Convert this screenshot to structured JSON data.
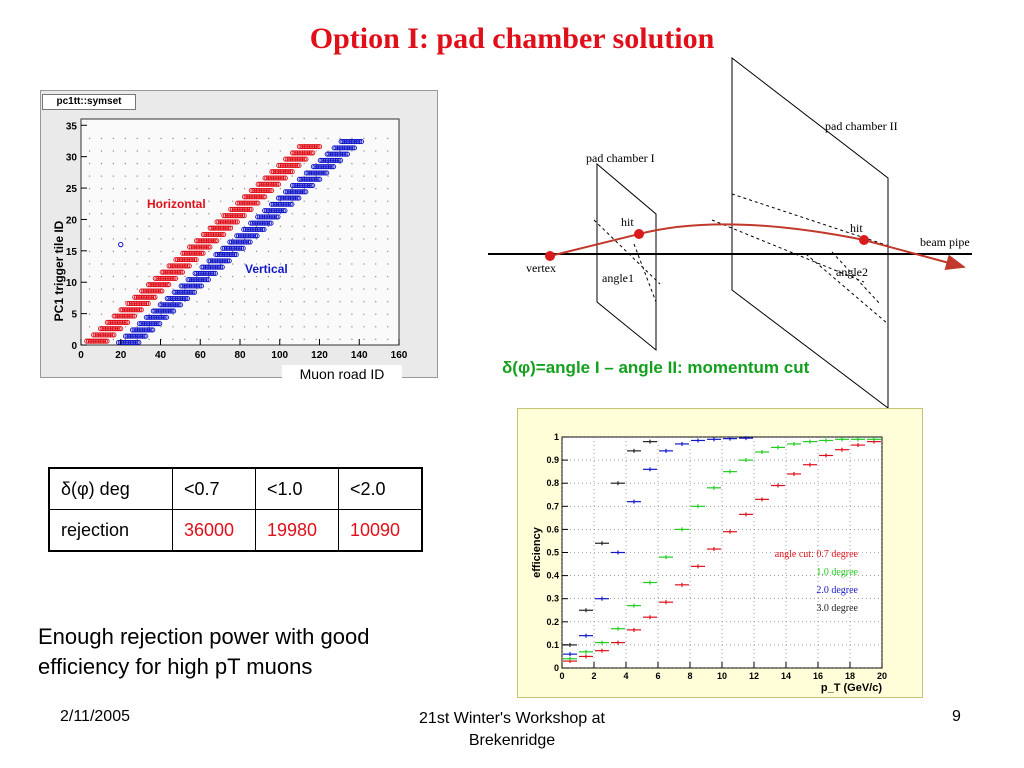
{
  "slide": {
    "title": "Option I:  pad chamber solution",
    "page_number": "9",
    "footer_date": "2/11/2005",
    "footer_event_line1": "21st Winter's Workshop at",
    "footer_event_line2": "Brekenridge"
  },
  "scatter_plot": {
    "tab_title": "pc1tt::symset",
    "ylabel": "PC1 trigger tile ID",
    "xlabel": "Muon road ID",
    "x_ticks": [
      "0",
      "20",
      "40",
      "60",
      "80",
      "100",
      "120",
      "140",
      "160"
    ],
    "y_ticks": [
      "0",
      "5",
      "10",
      "15",
      "20",
      "25",
      "30",
      "35"
    ],
    "series_labels": {
      "horizontal": "Horizontal",
      "vertical": "Vertical"
    },
    "colors": {
      "horizontal": "#e0101a",
      "vertical": "#1418c8"
    }
  },
  "diagram": {
    "pad_chamber_1": "pad chamber I",
    "pad_chamber_2": "pad chamber II",
    "hit_1": "hit",
    "hit_2": "hit",
    "vertex": "vertex",
    "beam_pipe": "beam pipe",
    "angle_1": "angle1",
    "angle_2": "angle2",
    "momentum_cut": "δ(φ)=angle I – angle II: momentum cut"
  },
  "rejection_table": {
    "headers": [
      "δ(φ) deg",
      "<0.7",
      "<1.0",
      "<2.0"
    ],
    "row_label": "rejection",
    "values": [
      "36000",
      "19980",
      "10090"
    ]
  },
  "conclusion_text": "Enough rejection power with good efficiency for high pT muons",
  "chart_data": {
    "type": "scatter",
    "title": "",
    "xlabel": "p_T (GeV/c)",
    "ylabel": "efficiency",
    "xlim": [
      0,
      20
    ],
    "ylim": [
      0,
      1
    ],
    "x_ticks": [
      "0",
      "2",
      "4",
      "6",
      "8",
      "10",
      "12",
      "14",
      "16",
      "18",
      "20"
    ],
    "y_ticks": [
      "0",
      "0.1",
      "0.2",
      "0.3",
      "0.4",
      "0.5",
      "0.6",
      "0.7",
      "0.8",
      "0.9",
      "1"
    ],
    "grid": true,
    "legend_position": "right-middle",
    "series": [
      {
        "name": "angle cut: 0.7 degree",
        "color": "#e0101a",
        "x": [
          0.5,
          1.5,
          2.5,
          3.5,
          4.5,
          5.5,
          6.5,
          7.5,
          8.5,
          9.5,
          10.5,
          11.5,
          12.5,
          13.5,
          14.5,
          15.5,
          16.5,
          17.5,
          18.5,
          19.5
        ],
        "y": [
          0.03,
          0.05,
          0.075,
          0.11,
          0.165,
          0.22,
          0.285,
          0.36,
          0.44,
          0.515,
          0.59,
          0.665,
          0.73,
          0.79,
          0.84,
          0.88,
          0.92,
          0.945,
          0.965,
          0.98
        ]
      },
      {
        "name": "1.0 degree",
        "color": "#22cc22",
        "x": [
          0.5,
          1.5,
          2.5,
          3.5,
          4.5,
          5.5,
          6.5,
          7.5,
          8.5,
          9.5,
          10.5,
          11.5,
          12.5,
          13.5,
          14.5,
          15.5,
          16.5,
          17.5,
          18.5,
          19.5
        ],
        "y": [
          0.04,
          0.07,
          0.11,
          0.17,
          0.27,
          0.37,
          0.48,
          0.6,
          0.7,
          0.78,
          0.85,
          0.9,
          0.935,
          0.955,
          0.97,
          0.98,
          0.985,
          0.99,
          0.99,
          0.99
        ]
      },
      {
        "name": "2.0 degree",
        "color": "#1418c8",
        "x": [
          0.5,
          1.5,
          2.5,
          3.5,
          4.5,
          5.5,
          6.5,
          7.5,
          8.5,
          9.5,
          10.5,
          11.5
        ],
        "y": [
          0.06,
          0.14,
          0.3,
          0.5,
          0.72,
          0.86,
          0.94,
          0.97,
          0.985,
          0.99,
          0.993,
          0.995
        ]
      },
      {
        "name": "3.0 degree",
        "color": "#222222",
        "x": [
          0.5,
          1.5,
          2.5,
          3.5,
          4.5,
          5.5
        ],
        "y": [
          0.1,
          0.25,
          0.54,
          0.8,
          0.94,
          0.98
        ]
      }
    ]
  }
}
